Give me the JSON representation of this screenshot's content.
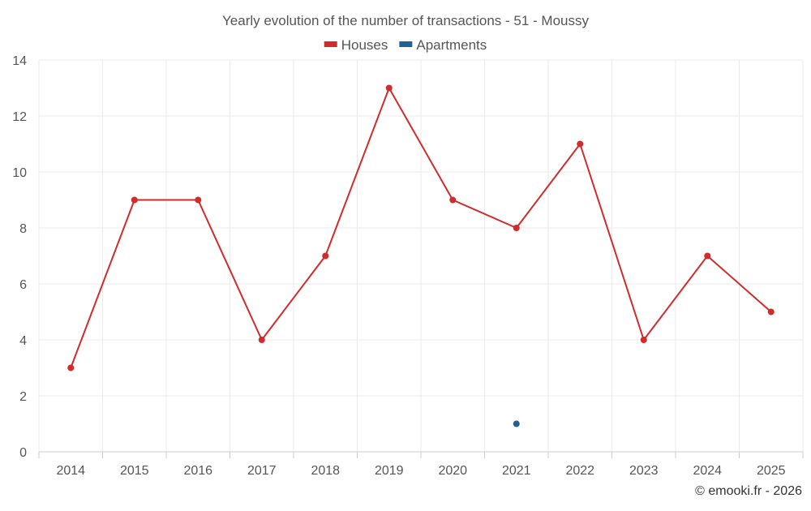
{
  "chart_data": {
    "type": "line",
    "title": "Yearly evolution of the number of transactions - 51 - Moussy",
    "categories": [
      "2014",
      "2015",
      "2016",
      "2017",
      "2018",
      "2019",
      "2020",
      "2021",
      "2022",
      "2023",
      "2024",
      "2025"
    ],
    "series": [
      {
        "name": "Houses",
        "color": "#d22b2b",
        "values": [
          3,
          9,
          9,
          4,
          7,
          13,
          9,
          8,
          11,
          4,
          7,
          5
        ]
      },
      {
        "name": "Apartments",
        "color": "#1f6396",
        "values": [
          null,
          null,
          null,
          null,
          null,
          null,
          null,
          1,
          null,
          null,
          null,
          null
        ]
      }
    ],
    "xlabel": "",
    "ylabel": "",
    "ylim": [
      0,
      14
    ],
    "yticks": [
      0,
      2,
      4,
      6,
      8,
      10,
      12,
      14
    ],
    "grid": true,
    "legend": "top-center"
  },
  "credit": "© emooki.fr - 2026"
}
